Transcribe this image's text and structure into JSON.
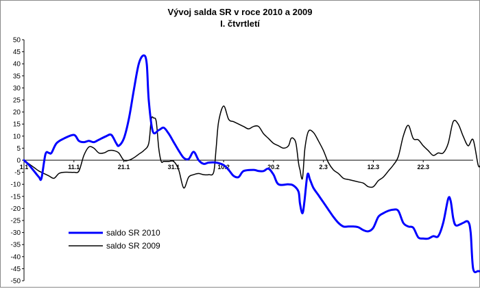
{
  "chart_data": {
    "type": "line",
    "title": "Vývoj salda SR v roce 2010 a 2009",
    "subtitle": "I. čtvrtletí",
    "xlabel": "",
    "ylabel": "",
    "ylim": [
      -50,
      50
    ],
    "ytick_step": 5,
    "grid": false,
    "legend_position": "bottom-left",
    "x_tick_labels": [
      {
        "x": 0,
        "label": "1.1"
      },
      {
        "x": 10,
        "label": "11.1"
      },
      {
        "x": 20,
        "label": "21.1"
      },
      {
        "x": 30,
        "label": "31.1"
      },
      {
        "x": 40,
        "label": "10.2"
      },
      {
        "x": 50,
        "label": "20.2"
      },
      {
        "x": 60,
        "label": "2.3"
      },
      {
        "x": 70,
        "label": "12.3"
      },
      {
        "x": 80,
        "label": "22.3"
      }
    ],
    "xlim": [
      0,
      90
    ],
    "series": [
      {
        "name": "saldo SR 2010",
        "color": "#0000ff",
        "points": [
          [
            0,
            0
          ],
          [
            1,
            -2
          ],
          [
            2,
            -4.5
          ],
          [
            3,
            -7
          ],
          [
            3.5,
            -7.5
          ],
          [
            4.3,
            2.5
          ],
          [
            5,
            3
          ],
          [
            5.5,
            3
          ],
          [
            6.5,
            7
          ],
          [
            8,
            9
          ],
          [
            10,
            10.5
          ],
          [
            11,
            8
          ],
          [
            12,
            7.5
          ],
          [
            13,
            8
          ],
          [
            14,
            7.5
          ],
          [
            15,
            8.5
          ],
          [
            16.5,
            10
          ],
          [
            17.5,
            10.5
          ],
          [
            18.5,
            7
          ],
          [
            19,
            6
          ],
          [
            20,
            9
          ],
          [
            21,
            17
          ],
          [
            22,
            29
          ],
          [
            23,
            40
          ],
          [
            24,
            43.5
          ],
          [
            24.6,
            40
          ],
          [
            25,
            25
          ],
          [
            25.8,
            12
          ],
          [
            27,
            12.5
          ],
          [
            28,
            13.5
          ],
          [
            29,
            11
          ],
          [
            30,
            7.5
          ],
          [
            31,
            4
          ],
          [
            32,
            1
          ],
          [
            33,
            0.5
          ],
          [
            34,
            3.5
          ],
          [
            35,
            0
          ],
          [
            36,
            -1.5
          ],
          [
            37,
            -1
          ],
          [
            38.5,
            -1
          ],
          [
            40,
            -2
          ],
          [
            41,
            -4
          ],
          [
            42,
            -6.5
          ],
          [
            43,
            -7
          ],
          [
            44,
            -4.5
          ],
          [
            46,
            -4
          ],
          [
            47,
            -4.5
          ],
          [
            48,
            -4.5
          ],
          [
            49,
            -3.5
          ],
          [
            50,
            -6
          ],
          [
            51,
            -10
          ],
          [
            53,
            -10
          ],
          [
            54,
            -10.5
          ],
          [
            55,
            -13
          ],
          [
            55.3,
            -18
          ],
          [
            55.8,
            -22
          ],
          [
            56.2,
            -17
          ],
          [
            56.8,
            -6
          ],
          [
            57.3,
            -8
          ],
          [
            58,
            -11.5
          ],
          [
            59,
            -14.5
          ],
          [
            60,
            -17.5
          ],
          [
            61,
            -20.5
          ],
          [
            62,
            -23.5
          ],
          [
            63,
            -26
          ],
          [
            64,
            -27.5
          ],
          [
            65,
            -27.5
          ],
          [
            66,
            -27.5
          ],
          [
            67,
            -27.8
          ],
          [
            68,
            -29
          ],
          [
            69,
            -29.5
          ],
          [
            70,
            -28
          ],
          [
            71,
            -23.5
          ],
          [
            72,
            -22
          ],
          [
            73,
            -21
          ],
          [
            74,
            -20.5
          ],
          [
            75,
            -21
          ],
          [
            76,
            -26
          ],
          [
            77,
            -27.5
          ],
          [
            78,
            -28
          ],
          [
            79,
            -32
          ],
          [
            80,
            -32.5
          ],
          [
            81,
            -32.5
          ],
          [
            82,
            -31.5
          ],
          [
            83,
            -31.5
          ],
          [
            84,
            -26
          ],
          [
            85,
            -16
          ],
          [
            85.5,
            -17
          ],
          [
            86,
            -24
          ],
          [
            86.5,
            -27
          ],
          [
            87.5,
            -26.5
          ],
          [
            88,
            -26
          ],
          [
            89,
            -25.5
          ],
          [
            89.5,
            -30
          ],
          [
            90,
            -45
          ],
          [
            91,
            -46
          ],
          [
            91.5,
            -46
          ]
        ]
      },
      {
        "name": "saldo SR 2009",
        "color": "#000000",
        "points": [
          [
            0,
            0
          ],
          [
            1,
            -1.5
          ],
          [
            2,
            -3
          ],
          [
            3,
            -4.5
          ],
          [
            4,
            -5.5
          ],
          [
            5,
            -6.5
          ],
          [
            6,
            -7.5
          ],
          [
            7,
            -5.5
          ],
          [
            8,
            -5
          ],
          [
            9,
            -5
          ],
          [
            10,
            -5
          ],
          [
            11,
            -4.5
          ],
          [
            12,
            2
          ],
          [
            13,
            5.5
          ],
          [
            14,
            5
          ],
          [
            15,
            3
          ],
          [
            16,
            3
          ],
          [
            17,
            4
          ],
          [
            18,
            4
          ],
          [
            19,
            3
          ],
          [
            20,
            0
          ],
          [
            21,
            0
          ],
          [
            22,
            1
          ],
          [
            23,
            2.5
          ],
          [
            24,
            4
          ],
          [
            25,
            7
          ],
          [
            25.5,
            17
          ],
          [
            26,
            17.5
          ],
          [
            26.5,
            16
          ],
          [
            27,
            5
          ],
          [
            27.5,
            -0.5
          ],
          [
            28,
            -0.5
          ],
          [
            29,
            -0.5
          ],
          [
            30,
            -0.5
          ],
          [
            31,
            -4
          ],
          [
            32,
            -11.5
          ],
          [
            33,
            -7
          ],
          [
            34,
            -6
          ],
          [
            35,
            -5.5
          ],
          [
            36,
            -6
          ],
          [
            37,
            -6
          ],
          [
            38,
            -5
          ],
          [
            38.5,
            5
          ],
          [
            39,
            16
          ],
          [
            40,
            22.5
          ],
          [
            41,
            17
          ],
          [
            42,
            16
          ],
          [
            43,
            15
          ],
          [
            44,
            14
          ],
          [
            45,
            13
          ],
          [
            46,
            14
          ],
          [
            47,
            14
          ],
          [
            48,
            11
          ],
          [
            49,
            9
          ],
          [
            50,
            7
          ],
          [
            51,
            6
          ],
          [
            52,
            5
          ],
          [
            53,
            6
          ],
          [
            53.5,
            9
          ],
          [
            54,
            9
          ],
          [
            54.5,
            7
          ],
          [
            55,
            -1
          ],
          [
            55.3,
            -4
          ],
          [
            55.8,
            -7.5
          ],
          [
            56.3,
            5
          ],
          [
            57,
            12
          ],
          [
            58,
            11.5
          ],
          [
            59,
            8
          ],
          [
            60,
            4
          ],
          [
            61,
            -1
          ],
          [
            62,
            -4
          ],
          [
            63,
            -5.5
          ],
          [
            64,
            -7.5
          ],
          [
            65,
            -8
          ],
          [
            66,
            -8.5
          ],
          [
            67,
            -9
          ],
          [
            68,
            -9.5
          ],
          [
            69,
            -11
          ],
          [
            70,
            -11
          ],
          [
            71,
            -8.5
          ],
          [
            72,
            -7
          ],
          [
            73,
            -4.5
          ],
          [
            74,
            -2
          ],
          [
            75,
            1.5
          ],
          [
            76,
            10
          ],
          [
            77,
            14.5
          ],
          [
            78,
            9
          ],
          [
            79,
            8.5
          ],
          [
            80,
            6
          ],
          [
            81,
            4
          ],
          [
            82,
            2
          ],
          [
            83,
            3
          ],
          [
            84,
            3
          ],
          [
            85,
            7
          ],
          [
            86,
            16
          ],
          [
            87,
            15
          ],
          [
            88,
            10
          ],
          [
            89,
            6
          ],
          [
            90,
            8.5
          ],
          [
            91,
            -2
          ],
          [
            91.5,
            -2
          ]
        ]
      }
    ]
  }
}
